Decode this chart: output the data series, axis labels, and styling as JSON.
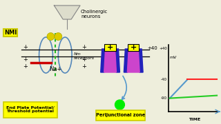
{
  "bg_color": "#eeeedc",
  "nmi_label": "NMI",
  "cholinergic_label": "Cholinergic\nneurons",
  "nm_receptors_label": "Nm\nreceptors",
  "na_label": "Na+",
  "epp_label": "End Plate Potential/\nThreshold potential",
  "peri_label": "Perijunctional zone",
  "mv_label": "mV",
  "time_label": "TIME",
  "receptor_blue": "#2222bb",
  "receptor_pink": "#cc44cc",
  "receptor_yellow": "#ffff00",
  "vesicle_yellow": "#ddcc00",
  "graph_red": "#ff2222",
  "graph_green": "#22cc22",
  "graph_blue": "#5599cc",
  "arrow_blue": "#5599cc",
  "box_yellow": "#ffff00",
  "box_border": "#cccc00",
  "neuron_fill": "#ddddcc",
  "neuron_edge": "#888888",
  "nmj_blue": "#5588bb",
  "green_line": "#22bb22",
  "red_minus": "#cc0000"
}
